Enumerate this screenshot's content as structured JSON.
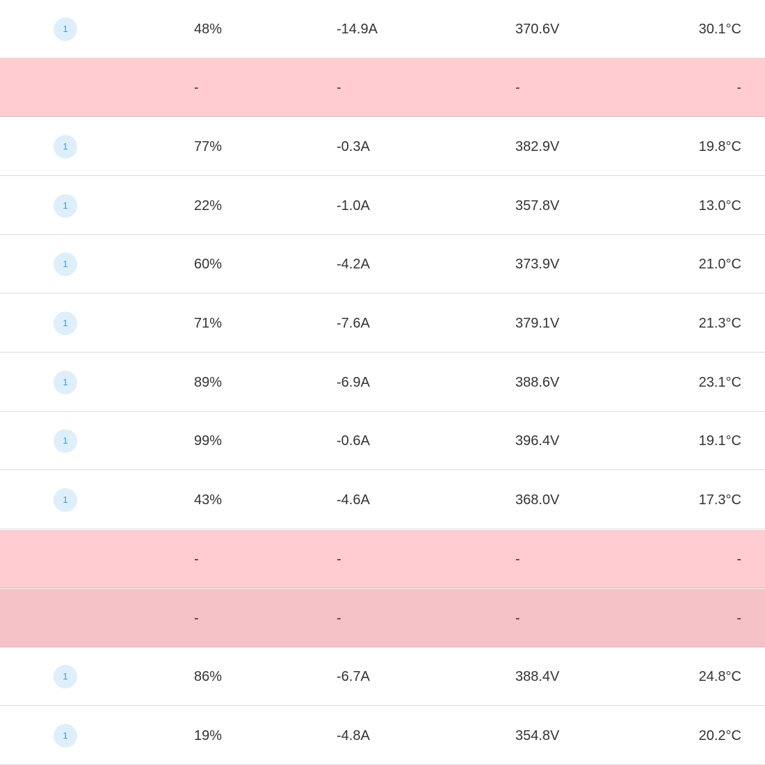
{
  "table": {
    "rows": [
      {
        "badge": "1",
        "soc": "48%",
        "current": "-14.9A",
        "voltage": "370.6V",
        "temperature": "30.1°C",
        "status": "normal"
      },
      {
        "badge": "",
        "soc": "-",
        "current": "-",
        "voltage": "-",
        "temperature": "-",
        "status": "alert"
      },
      {
        "badge": "1",
        "soc": "77%",
        "current": "-0.3A",
        "voltage": "382.9V",
        "temperature": "19.8°C",
        "status": "normal"
      },
      {
        "badge": "1",
        "soc": "22%",
        "current": "-1.0A",
        "voltage": "357.8V",
        "temperature": "13.0°C",
        "status": "normal"
      },
      {
        "badge": "1",
        "soc": "60%",
        "current": "-4.2A",
        "voltage": "373.9V",
        "temperature": "21.0°C",
        "status": "normal"
      },
      {
        "badge": "1",
        "soc": "71%",
        "current": "-7.6A",
        "voltage": "379.1V",
        "temperature": "21.3°C",
        "status": "normal"
      },
      {
        "badge": "1",
        "soc": "89%",
        "current": "-6.9A",
        "voltage": "388.6V",
        "temperature": "23.1°C",
        "status": "normal"
      },
      {
        "badge": "1",
        "soc": "99%",
        "current": "-0.6A",
        "voltage": "396.4V",
        "temperature": "19.1°C",
        "status": "normal"
      },
      {
        "badge": "1",
        "soc": "43%",
        "current": "-4.6A",
        "voltage": "368.0V",
        "temperature": "17.3°C",
        "status": "normal"
      },
      {
        "badge": "",
        "soc": "-",
        "current": "-",
        "voltage": "-",
        "temperature": "-",
        "status": "alert"
      },
      {
        "badge": "",
        "soc": "-",
        "current": "-",
        "voltage": "-",
        "temperature": "-",
        "status": "alert-hover"
      },
      {
        "badge": "1",
        "soc": "86%",
        "current": "-6.7A",
        "voltage": "388.4V",
        "temperature": "24.8°C",
        "status": "normal"
      },
      {
        "badge": "1",
        "soc": "19%",
        "current": "-4.8A",
        "voltage": "354.8V",
        "temperature": "20.2°C",
        "status": "normal"
      }
    ]
  },
  "colors": {
    "alert_row": "#ffccd1",
    "alert_row_hover": "#f5c3c7",
    "badge_bg": "#deeffb",
    "badge_text": "#3a9bdc",
    "divider": "#dddddd"
  }
}
